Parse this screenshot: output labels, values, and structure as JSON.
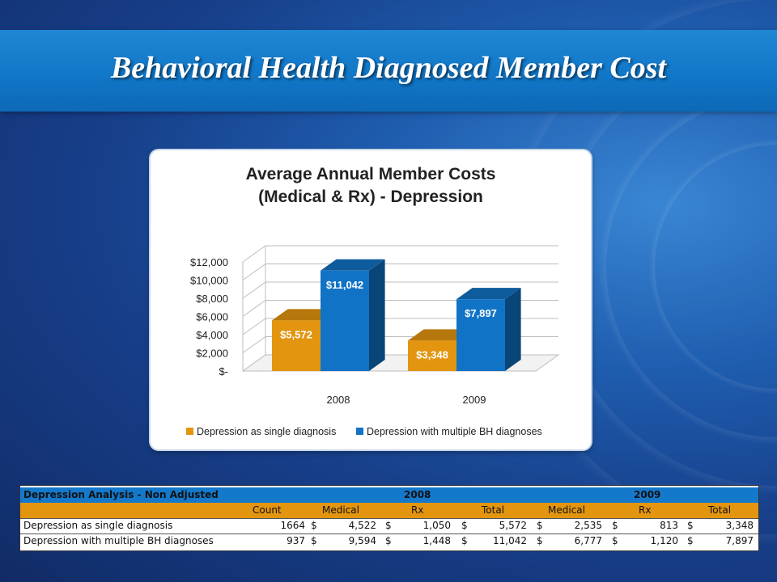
{
  "slide": {
    "title": "Behavioral Health Diagnosed Member Cost"
  },
  "chart_data": {
    "type": "bar",
    "title": "Average Annual Member Costs",
    "subtitle": "(Medical & Rx) - Depression",
    "categories": [
      "2008",
      "2009"
    ],
    "series": [
      {
        "name": "Depression as single diagnosis",
        "values": [
          5572,
          3348
        ],
        "labels": [
          "$5,572",
          "$3,348"
        ],
        "color": "#e3950f"
      },
      {
        "name": "Depression with multiple BH diagnoses",
        "values": [
          11042,
          7897
        ],
        "labels": [
          "$11,042",
          "$7,897"
        ],
        "color": "#1173c6"
      }
    ],
    "y_ticks": [
      "$-",
      "$2,000",
      "$4,000",
      "$6,000",
      "$8,000",
      "$10,000",
      "$12,000"
    ],
    "ylim": [
      0,
      12000
    ],
    "legend_position": "bottom",
    "style": "3d-clustered-column",
    "grid": true
  },
  "table": {
    "title": "Depression Analysis - Non Adjusted",
    "years": [
      "2008",
      "2009"
    ],
    "columns": [
      "Count",
      "Medical",
      "Rx",
      "Total",
      "Medical",
      "Rx",
      "Total"
    ],
    "currency_symbol": "$",
    "rows": [
      {
        "label": "Depression as single diagnosis",
        "count": "1664",
        "values": [
          "4,522",
          "1,050",
          "5,572",
          "2,535",
          "813",
          "3,348"
        ]
      },
      {
        "label": "Depression with multiple BH diagnoses",
        "count": "937",
        "values": [
          "9,594",
          "1,448",
          "11,042",
          "6,777",
          "1,120",
          "7,897"
        ]
      }
    ]
  },
  "colors": {
    "title_bar": "#1177c8",
    "table_header": "#1479cb",
    "table_subheader": "#e3950f"
  }
}
